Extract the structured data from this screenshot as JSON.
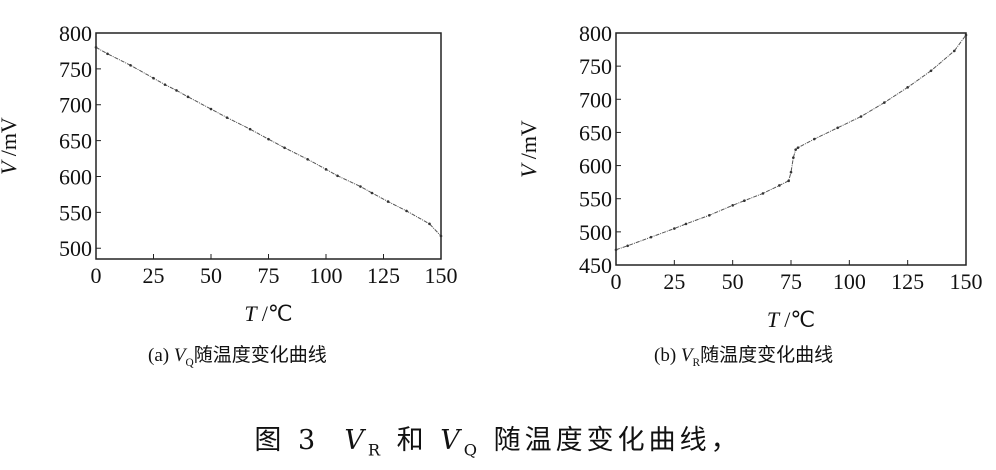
{
  "figure_caption": {
    "prefix": "图 3",
    "v1": "V",
    "v1_sub": "R",
    "mid": "和",
    "v2": "V",
    "v2_sub": "Q",
    "suffix": "随温度变化曲线，"
  },
  "chart_data": [
    {
      "type": "line",
      "panel_caption": {
        "label": "(a)",
        "var": "V",
        "var_sub": "Q",
        "text": "随温度变化曲线"
      },
      "xlabel_var": "T",
      "xlabel_unit": "/℃",
      "ylabel_var": "V",
      "ylabel_unit": "/mV",
      "xlim": [
        0,
        150
      ],
      "ylim": [
        485,
        800
      ],
      "xticks": [
        0,
        25,
        50,
        75,
        100,
        125,
        150
      ],
      "yticks": [
        500,
        550,
        600,
        650,
        700,
        750,
        800
      ],
      "grid": false,
      "line_color": "#555555",
      "x": [
        0,
        5,
        15,
        25,
        30,
        35,
        40,
        50,
        57,
        67,
        75,
        82,
        92,
        100,
        105,
        115,
        120,
        127,
        135,
        145,
        150
      ],
      "y": [
        780,
        771,
        755,
        737,
        728,
        720,
        711,
        694,
        682,
        666,
        652,
        640,
        624,
        610,
        601,
        586,
        577,
        565,
        552,
        534,
        517
      ]
    },
    {
      "type": "line",
      "panel_caption": {
        "label": "(b)",
        "var": "V",
        "var_sub": "R",
        "text": "随温度变化曲线"
      },
      "xlabel_var": "T",
      "xlabel_unit": "/℃",
      "ylabel_var": "V",
      "ylabel_unit": "/mV",
      "xlim": [
        0,
        150
      ],
      "ylim": [
        450,
        800
      ],
      "xticks": [
        0,
        25,
        50,
        75,
        100,
        125,
        150
      ],
      "yticks": [
        450,
        500,
        550,
        600,
        650,
        700,
        750,
        800
      ],
      "grid": false,
      "line_color": "#555555",
      "x": [
        0,
        5,
        15,
        25,
        30,
        40,
        50,
        55,
        63,
        70,
        74,
        75,
        76,
        77,
        78,
        85,
        95,
        105,
        115,
        125,
        135,
        145,
        150
      ],
      "y": [
        473,
        479,
        492,
        505,
        512,
        525,
        540,
        547,
        558,
        570,
        577,
        590,
        612,
        624,
        627,
        640,
        657,
        674,
        695,
        718,
        743,
        773,
        797
      ]
    }
  ]
}
